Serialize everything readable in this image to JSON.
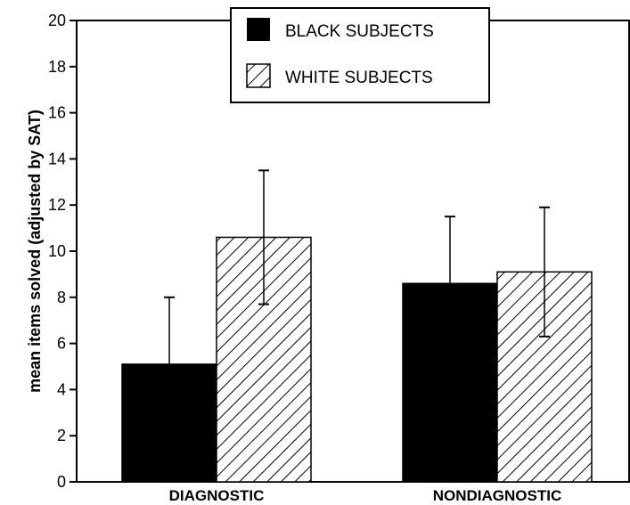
{
  "chart_data": {
    "type": "bar",
    "categories": [
      "DIAGNOSTIC",
      "NONDIAGNOSTIC"
    ],
    "series": [
      {
        "name": "BLACK SUBJECTS",
        "values": [
          5.1,
          8.6
        ],
        "error": [
          2.9,
          2.9
        ],
        "fill": "solid",
        "color": "#000000"
      },
      {
        "name": "WHITE SUBJECTS",
        "values": [
          10.6,
          9.1
        ],
        "error": [
          2.9,
          2.8
        ],
        "fill": "hatched",
        "color": "#000000"
      }
    ],
    "title": "",
    "xlabel": "",
    "ylabel": "mean items solved (adjusted by SAT)",
    "ylim": [
      0,
      20
    ],
    "yticks": [
      "0",
      "2",
      "4",
      "6",
      "8",
      "10",
      "12",
      "14",
      "16",
      "18",
      "20"
    ],
    "grid": false,
    "legend_position": "top-center"
  }
}
